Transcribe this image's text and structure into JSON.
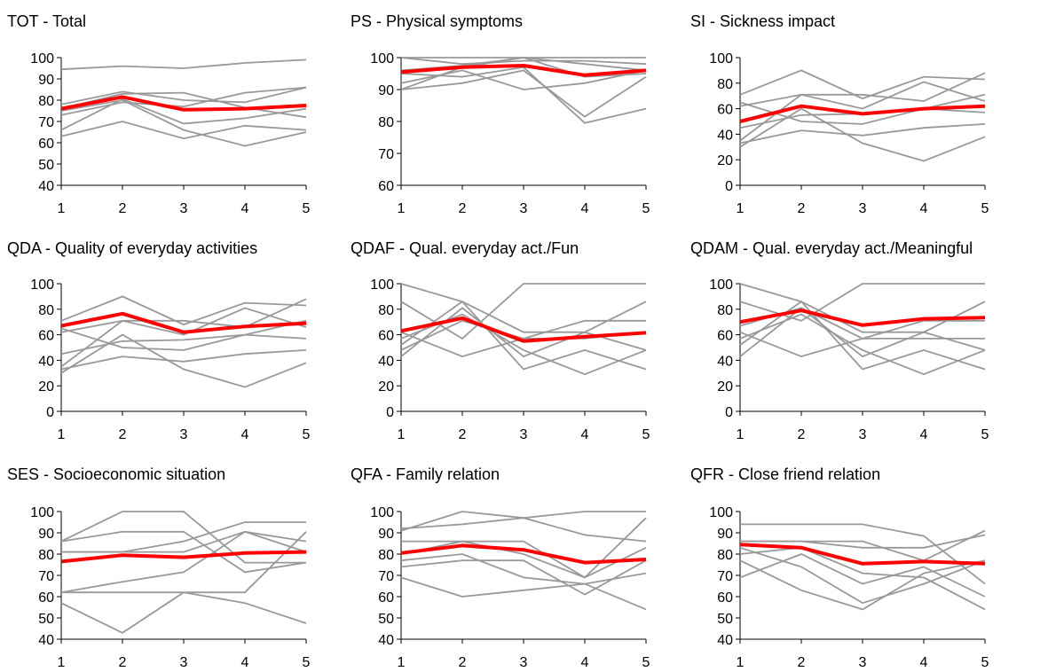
{
  "chart_data": [
    {
      "type": "line",
      "title": "TOT - Total",
      "x": [
        1,
        2,
        3,
        4,
        5
      ],
      "ylim": [
        40,
        100
      ],
      "yticks": [
        40,
        50,
        60,
        70,
        80,
        90,
        100
      ],
      "grid": false,
      "individual_color": "#999999",
      "mean_color": "#ff0000",
      "individuals": [
        [
          94.5,
          96,
          95,
          97.5,
          99
        ],
        [
          78,
          84,
          80,
          79,
          86
        ],
        [
          76,
          83,
          83.5,
          76.5,
          72
        ],
        [
          73,
          79,
          77,
          83.5,
          86
        ],
        [
          66,
          80.5,
          69,
          71.5,
          76
        ],
        [
          63,
          70,
          62,
          68,
          66
        ],
        [
          75,
          80,
          66,
          58.5,
          65
        ]
      ],
      "mean": [
        76,
        81.5,
        75.5,
        76,
        77.5
      ]
    },
    {
      "type": "line",
      "title": "PS - Physical symptoms",
      "x": [
        1,
        2,
        3,
        4,
        5
      ],
      "ylim": [
        60,
        100
      ],
      "yticks": [
        60,
        70,
        80,
        90,
        100
      ],
      "grid": false,
      "individual_color": "#999999",
      "mean_color": "#ff0000",
      "individuals": [
        [
          100,
          100,
          100,
          100,
          100
        ],
        [
          96,
          97.5,
          100,
          98,
          96
        ],
        [
          90,
          92,
          96,
          81.5,
          94
        ],
        [
          95,
          94,
          97,
          79.5,
          84
        ],
        [
          92,
          96,
          90,
          92,
          96
        ],
        [
          100,
          98,
          99,
          99,
          98
        ],
        [
          90,
          97,
          100,
          94,
          95
        ]
      ],
      "mean": [
        95.5,
        97,
        97.5,
        94.5,
        96
      ]
    },
    {
      "type": "line",
      "title": "SI - Sickness impact",
      "x": [
        1,
        2,
        3,
        4,
        5
      ],
      "ylim": [
        0,
        100
      ],
      "yticks": [
        0,
        20,
        40,
        60,
        80,
        100
      ],
      "grid": false,
      "individual_color": "#999999",
      "mean_color": "#ff0000",
      "individuals": [
        [
          71,
          90,
          68,
          85,
          83
        ],
        [
          62,
          71,
          71,
          66,
          88
        ],
        [
          35,
          71,
          60,
          81,
          66
        ],
        [
          33,
          43,
          39,
          45,
          48
        ],
        [
          30,
          60,
          33,
          19,
          38
        ],
        [
          45,
          55,
          56,
          60,
          71
        ],
        [
          65,
          50,
          48,
          60,
          57
        ]
      ],
      "mean": [
        50,
        62,
        56,
        60,
        62
      ]
    },
    {
      "type": "line",
      "title": "QDA - Quality of everyday activities",
      "x": [
        1,
        2,
        3,
        4,
        5
      ],
      "ylim": [
        0,
        100
      ],
      "yticks": [
        0,
        20,
        40,
        60,
        80,
        100
      ],
      "grid": false,
      "individual_color": "#999999",
      "mean_color": "#ff0000",
      "individuals": [
        [
          71,
          90,
          68,
          85,
          83
        ],
        [
          62,
          71,
          71,
          66,
          88
        ],
        [
          35,
          71,
          60,
          81,
          66
        ],
        [
          33,
          43,
          39,
          45,
          48
        ],
        [
          30,
          60,
          33,
          19,
          38
        ],
        [
          45,
          55,
          56,
          60,
          71
        ],
        [
          65,
          50,
          48,
          60,
          57
        ]
      ],
      "mean": [
        67,
        76.5,
        62,
        66.5,
        69
      ]
    },
    {
      "type": "line",
      "title": "QDAF - Qual. everyday act./Fun",
      "x": [
        1,
        2,
        3,
        4,
        5
      ],
      "ylim": [
        0,
        100
      ],
      "yticks": [
        0,
        20,
        40,
        60,
        80,
        100
      ],
      "grid": false,
      "individual_color": "#999999",
      "mean_color": "#ff0000",
      "individuals": [
        [
          100,
          86,
          62,
          62,
          86
        ],
        [
          86,
          57,
          100,
          100,
          100
        ],
        [
          62,
          43,
          57,
          71,
          71
        ],
        [
          43,
          81,
          43,
          62,
          48
        ],
        [
          52,
          86,
          33,
          48,
          33
        ],
        [
          57,
          76,
          48,
          29,
          48
        ],
        [
          48,
          71,
          57,
          57,
          62
        ]
      ],
      "mean": [
        63,
        73,
        55,
        58.5,
        61.5
      ]
    },
    {
      "type": "line",
      "title": "QDAM - Qual. everyday act./Meaningful",
      "x": [
        1,
        2,
        3,
        4,
        5
      ],
      "ylim": [
        0,
        100
      ],
      "yticks": [
        0,
        20,
        40,
        60,
        80,
        100
      ],
      "grid": false,
      "individual_color": "#999999",
      "mean_color": "#ff0000",
      "individuals": [
        [
          100,
          86,
          62,
          62,
          86
        ],
        [
          86,
          71,
          100,
          100,
          100
        ],
        [
          62,
          43,
          57,
          71,
          71
        ],
        [
          43,
          81,
          43,
          62,
          48
        ],
        [
          52,
          86,
          33,
          48,
          33
        ],
        [
          57,
          76,
          48,
          29,
          48
        ],
        [
          67,
          81,
          57,
          57,
          57
        ]
      ],
      "mean": [
        70,
        79,
        67.5,
        72.5,
        73.5
      ]
    },
    {
      "type": "line",
      "title": "SES - Socioeconomic situation",
      "x": [
        1,
        2,
        3,
        4,
        5
      ],
      "ylim": [
        40,
        100
      ],
      "yticks": [
        40,
        50,
        60,
        70,
        80,
        90,
        100
      ],
      "grid": false,
      "individual_color": "#999999",
      "mean_color": "#ff0000",
      "individuals": [
        [
          86,
          100,
          100,
          76,
          76
        ],
        [
          86,
          90.5,
          90.5,
          71.5,
          76
        ],
        [
          81,
          81,
          86,
          95,
          95
        ],
        [
          62,
          67,
          71.5,
          90.5,
          81
        ],
        [
          62,
          62,
          62,
          62,
          90.5
        ],
        [
          57,
          43,
          62,
          57,
          47.5
        ],
        [
          81,
          81,
          81,
          90.5,
          86
        ]
      ],
      "mean": [
        76.5,
        79.5,
        78.5,
        80.5,
        81
      ]
    },
    {
      "type": "line",
      "title": "QFA - Family relation",
      "x": [
        1,
        2,
        3,
        4,
        5
      ],
      "ylim": [
        40,
        100
      ],
      "yticks": [
        40,
        50,
        60,
        70,
        80,
        90,
        100
      ],
      "grid": false,
      "individual_color": "#999999",
      "mean_color": "#ff0000",
      "individuals": [
        [
          91,
          100,
          97,
          100,
          100
        ],
        [
          92,
          94,
          97,
          89,
          86
        ],
        [
          86,
          86,
          86,
          69,
          83
        ],
        [
          77,
          80,
          69,
          66,
          54
        ],
        [
          69,
          60,
          63,
          66,
          71
        ],
        [
          74,
          77,
          77,
          61,
          77
        ],
        [
          80,
          86,
          80,
          69,
          97
        ]
      ],
      "mean": [
        80.5,
        84,
        82,
        76,
        77.5
      ]
    },
    {
      "type": "line",
      "title": "QFR - Close friend relation",
      "x": [
        1,
        2,
        3,
        4,
        5
      ],
      "ylim": [
        40,
        100
      ],
      "yticks": [
        40,
        50,
        60,
        70,
        80,
        90,
        100
      ],
      "grid": false,
      "individual_color": "#999999",
      "mean_color": "#ff0000",
      "individuals": [
        [
          94,
          94,
          94,
          88.5,
          66
        ],
        [
          86,
          86,
          86,
          77,
          91
        ],
        [
          83,
          74,
          57,
          66,
          77
        ],
        [
          77,
          63,
          54,
          71,
          77
        ],
        [
          69,
          80,
          66,
          74,
          60
        ],
        [
          80,
          83,
          71,
          69,
          54
        ],
        [
          86,
          86,
          83,
          83,
          89
        ]
      ],
      "mean": [
        84.5,
        83,
        75.5,
        76.5,
        75.5
      ]
    }
  ]
}
